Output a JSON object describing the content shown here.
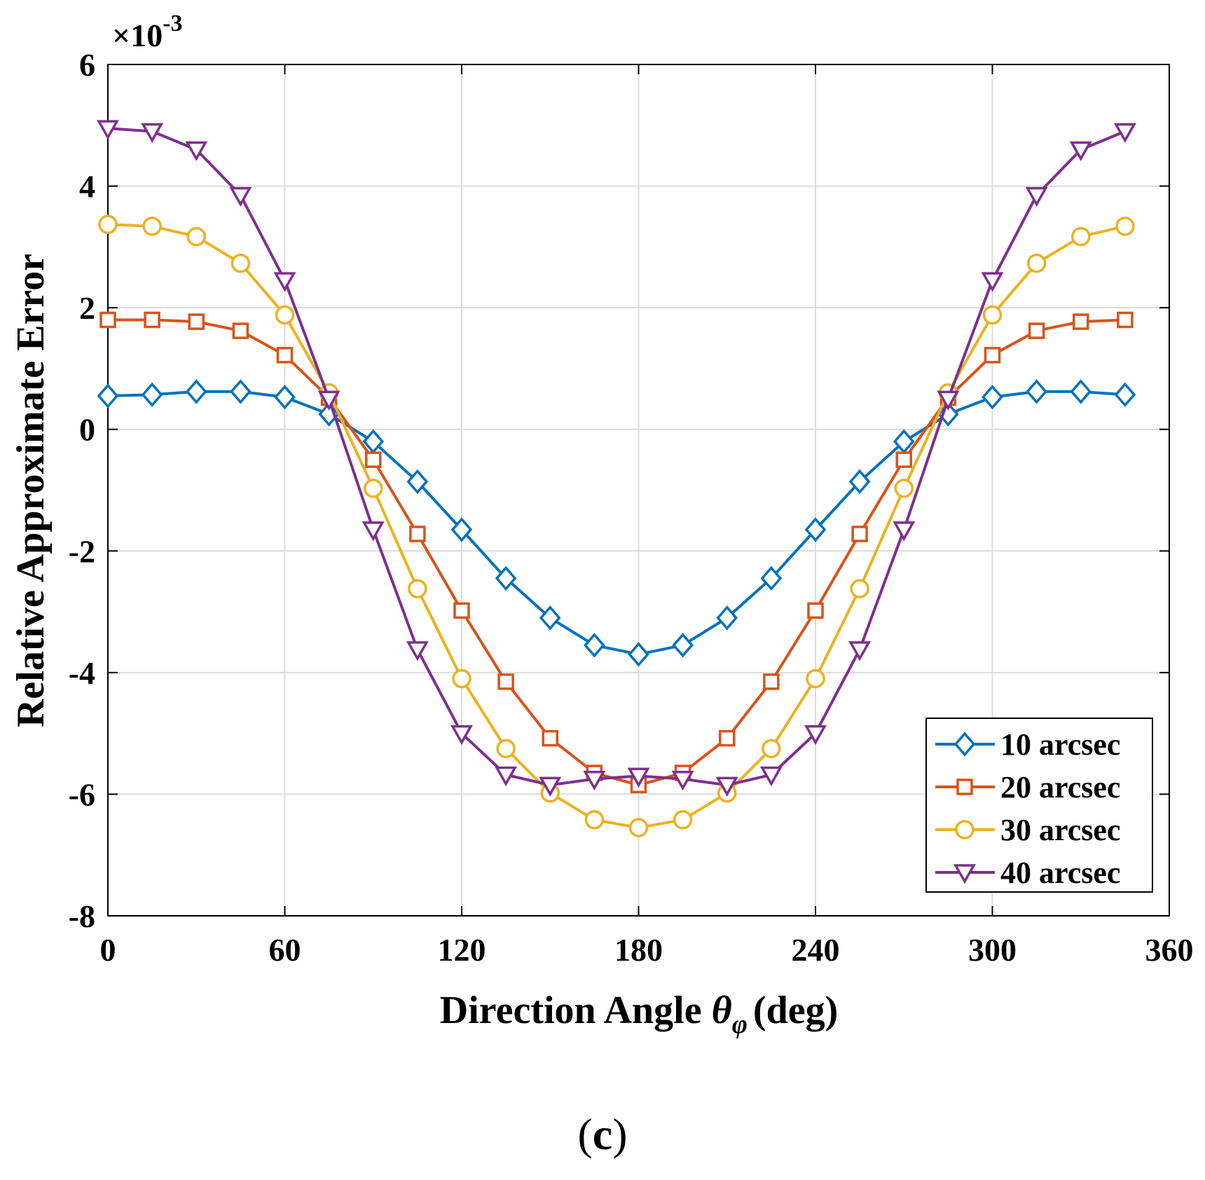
{
  "figure_label": "(c)",
  "caption_parts": {
    "open": "(",
    "letter": "c",
    "close": ")"
  },
  "chart_data": {
    "type": "line",
    "xlabel": "Direction Angle",
    "xlabel_symbol": "θ",
    "xlabel_subscript": "φ",
    "xlabel_unit": "(deg)",
    "ylabel": "Relative Approximate Error",
    "y_multiplier_base": "×10",
    "y_multiplier_exp": "-3",
    "xlim": [
      0,
      360
    ],
    "ylim": [
      -8,
      6
    ],
    "xticks": [
      0,
      60,
      120,
      180,
      240,
      300,
      360
    ],
    "yticks": [
      6,
      4,
      2,
      0,
      -2,
      -4,
      -6,
      -8
    ],
    "grid": true,
    "legend_position": "bottom-right",
    "x": [
      0,
      15,
      30,
      45,
      60,
      75,
      90,
      105,
      120,
      135,
      150,
      165,
      180,
      195,
      210,
      225,
      240,
      255,
      270,
      285,
      300,
      315,
      330,
      345
    ],
    "series": [
      {
        "name": "10 arcsec",
        "color": "#0072BD",
        "marker": "diamond",
        "values": [
          0.55,
          0.57,
          0.62,
          0.62,
          0.53,
          0.25,
          -0.2,
          -0.86,
          -1.65,
          -2.45,
          -3.1,
          -3.55,
          -3.7,
          -3.55,
          -3.1,
          -2.45,
          -1.65,
          -0.86,
          -0.2,
          0.25,
          0.53,
          0.62,
          0.62,
          0.57
        ]
      },
      {
        "name": "20 arcsec",
        "color": "#D95319",
        "marker": "square",
        "values": [
          1.8,
          1.8,
          1.77,
          1.62,
          1.22,
          0.52,
          -0.5,
          -1.72,
          -2.98,
          -4.15,
          -5.08,
          -5.65,
          -5.85,
          -5.65,
          -5.08,
          -4.15,
          -2.98,
          -1.72,
          -0.5,
          0.52,
          1.22,
          1.62,
          1.77,
          1.8
        ]
      },
      {
        "name": "30 arcsec",
        "color": "#EDB120",
        "marker": "circle",
        "values": [
          3.37,
          3.34,
          3.17,
          2.73,
          1.88,
          0.6,
          -0.97,
          -2.62,
          -4.1,
          -5.25,
          -5.98,
          -6.42,
          -6.55,
          -6.42,
          -5.98,
          -5.25,
          -4.1,
          -2.62,
          -0.97,
          0.6,
          1.88,
          2.73,
          3.17,
          3.34
        ]
      },
      {
        "name": "40 arcsec",
        "color": "#7E2F8E",
        "marker": "triangle-down",
        "values": [
          4.95,
          4.9,
          4.6,
          3.85,
          2.45,
          0.5,
          -1.65,
          -3.62,
          -5.0,
          -5.68,
          -5.85,
          -5.75,
          -5.7,
          -5.75,
          -5.85,
          -5.68,
          -5.0,
          -3.62,
          -1.65,
          0.5,
          2.45,
          3.85,
          4.6,
          4.9
        ]
      }
    ]
  }
}
